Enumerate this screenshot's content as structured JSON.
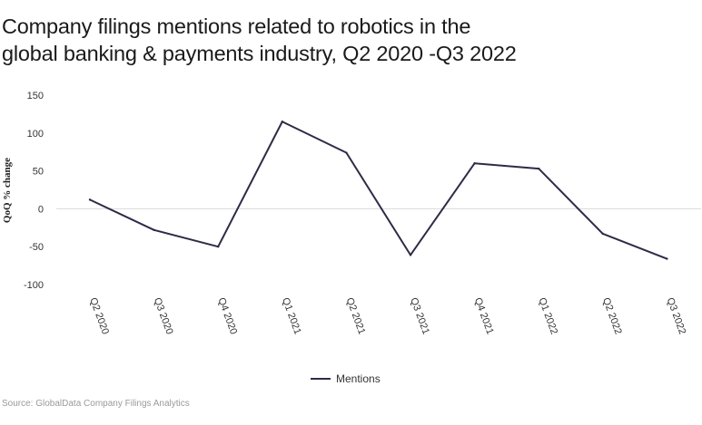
{
  "chart_data": {
    "type": "line",
    "title_lines": [
      "Company filings mentions related to robotics in the",
      "global banking & payments industry, Q2 2020 -Q3 2022"
    ],
    "ylabel": "QoQ % change",
    "xlabel": "",
    "categories": [
      "Q2 2020",
      "Q3 2020",
      "Q4 2020",
      "Q1 2021",
      "Q2 2021",
      "Q3 2021",
      "Q4 2021",
      "Q1 2022",
      "Q2 2022",
      "Q3 2022"
    ],
    "series": [
      {
        "name": "Mentions",
        "color": "#2e2b47",
        "values": [
          12,
          -28,
          -50,
          115,
          74,
          -61,
          60,
          53,
          -33,
          -66
        ]
      }
    ],
    "yticks": [
      150,
      100,
      50,
      0,
      -50,
      -100
    ],
    "ylim": [
      -100,
      150
    ],
    "zero_line": true,
    "grid": false,
    "legend_position": "bottom-center"
  },
  "source": "Source: GlobalData Company Filings Analytics"
}
